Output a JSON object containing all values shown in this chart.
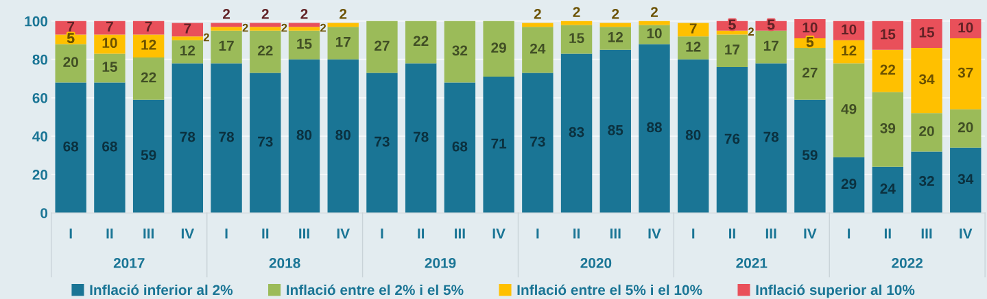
{
  "chart_data": {
    "type": "bar",
    "stacked": true,
    "data_labels": true,
    "grid": "y",
    "legend": "bottom",
    "categories": [
      "I",
      "II",
      "III",
      "IV",
      "I",
      "II",
      "III",
      "IV",
      "I",
      "II",
      "III",
      "IV",
      "I",
      "II",
      "III",
      "IV",
      "I",
      "II",
      "III",
      "IV",
      "I",
      "II",
      "III",
      "IV"
    ],
    "annotations": [
      "2017",
      "2018",
      "2019",
      "2020",
      "2021",
      "2022"
    ],
    "ylim": [
      0,
      101
    ],
    "yticks": [
      0,
      20,
      40,
      60,
      80,
      100
    ],
    "series": [
      {
        "name": "Inflació inferior al 2%",
        "color": "#1a7595",
        "values": [
          68,
          68,
          59,
          78,
          78,
          73,
          80,
          80,
          73,
          78,
          68,
          71,
          73,
          83,
          85,
          88,
          80,
          76,
          78,
          59,
          29,
          24,
          32,
          34
        ]
      },
      {
        "name": "Inflació entre el 2% i el 5%",
        "color": "#9bbb59",
        "values": [
          20,
          15,
          22,
          12,
          17,
          22,
          15,
          17,
          27,
          22,
          32,
          29,
          24,
          15,
          12,
          10,
          12,
          17,
          17,
          27,
          49,
          39,
          20,
          20
        ]
      },
      {
        "name": "Inflació entre el 5% i el 10%",
        "color": "#ffc000",
        "values": [
          5,
          10,
          12,
          2,
          2,
          2,
          2,
          2,
          null,
          null,
          null,
          null,
          2,
          2,
          2,
          2,
          7,
          2,
          null,
          5,
          12,
          22,
          34,
          37
        ]
      },
      {
        "name": "Inflació superior al 10%",
        "color": "#e9505a",
        "values": [
          7,
          7,
          7,
          7,
          2,
          2,
          2,
          null,
          null,
          null,
          null,
          null,
          null,
          null,
          null,
          null,
          null,
          5,
          5,
          10,
          10,
          15,
          15,
          10
        ]
      }
    ]
  }
}
